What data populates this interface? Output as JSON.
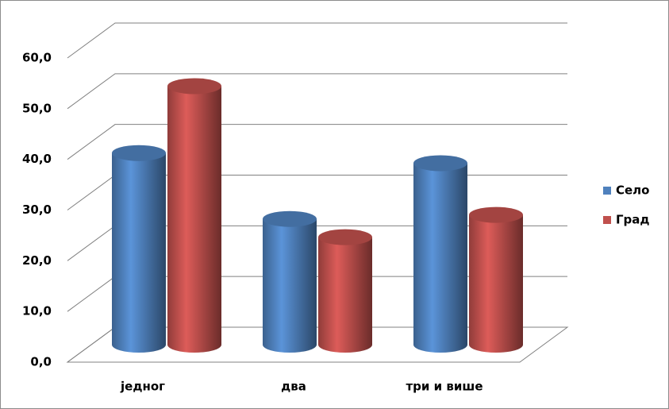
{
  "chart_data": {
    "type": "bar3d",
    "categories": [
      "једног",
      "два",
      "три и више"
    ],
    "series": [
      {
        "name": "Село",
        "color": "#4f81bd",
        "values": [
          37.8,
          24.8,
          35.8
        ]
      },
      {
        "name": "Град",
        "color": "#c0504d",
        "values": [
          51.0,
          21.2,
          25.6
        ]
      }
    ],
    "ylim": [
      0,
      60
    ],
    "yticks": [
      {
        "value": 0,
        "label": "0,0"
      },
      {
        "value": 10,
        "label": "10,0"
      },
      {
        "value": 20,
        "label": "20,0"
      },
      {
        "value": 30,
        "label": "30,0"
      },
      {
        "value": 40,
        "label": "40,0"
      },
      {
        "value": 50,
        "label": "50,0"
      },
      {
        "value": 60,
        "label": "60,0"
      }
    ],
    "grid": true,
    "legend": "right"
  }
}
